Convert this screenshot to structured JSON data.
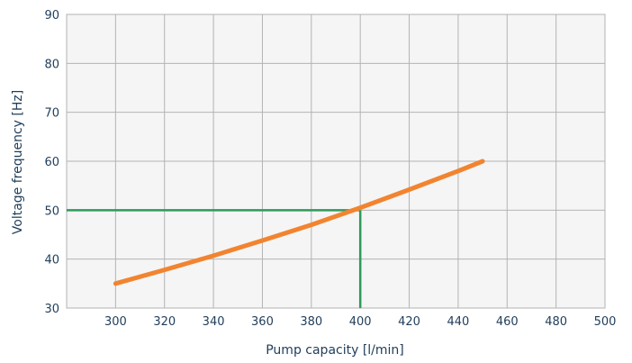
{
  "chart_data": {
    "type": "line",
    "xlabel": "Pump capacity [l/min]",
    "ylabel": "Voltage frequency [Hz]",
    "xlim": [
      280,
      500
    ],
    "ylim": [
      30,
      90
    ],
    "x_ticks": [
      300,
      320,
      340,
      360,
      380,
      400,
      420,
      440,
      460,
      480,
      500
    ],
    "y_ticks": [
      30,
      40,
      50,
      60,
      70,
      80,
      90
    ],
    "grid": true,
    "series": [
      {
        "color": "#f28430",
        "x": [
          300,
          320,
          340,
          360,
          380,
          400,
          420,
          440,
          450
        ],
        "y": [
          35,
          37.8,
          40.7,
          43.8,
          47,
          50.5,
          54.2,
          58,
          60
        ]
      }
    ],
    "reference_lines": {
      "color": "#2e9a5a",
      "x": 400,
      "y": 50
    },
    "plot_background": "#f5f5f5",
    "grid_color": "#b3b3b3"
  }
}
